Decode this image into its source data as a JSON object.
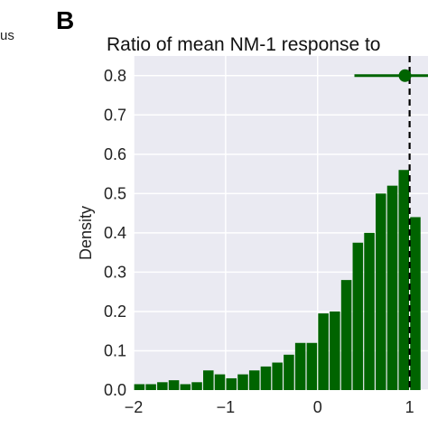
{
  "panel_letter": "B",
  "left_panel_fragment": "us",
  "colors": {
    "plot_background": "#eaeaf2",
    "grid": "#ffffff",
    "bar": "#006400",
    "marker": "#006400",
    "reference_line": "#000000"
  },
  "chart_data": {
    "type": "bar",
    "title": "Ratio of mean NM-1 response to",
    "xlabel": "",
    "ylabel": "Density",
    "xlim": [
      -2.0,
      1.2
    ],
    "ylim": [
      0.0,
      0.85
    ],
    "x_ticks": [
      -2,
      -1,
      0,
      1
    ],
    "x_tick_labels": [
      "−2",
      "−1",
      "0",
      "1"
    ],
    "y_ticks": [
      0.0,
      0.1,
      0.2,
      0.3,
      0.4,
      0.5,
      0.6,
      0.7,
      0.8
    ],
    "y_tick_labels": [
      "0.0",
      "0.1",
      "0.2",
      "0.3",
      "0.4",
      "0.5",
      "0.6",
      "0.7",
      "0.8"
    ],
    "grid": true,
    "bin_width": 0.125,
    "bin_starts": [
      -2.0,
      -1.875,
      -1.75,
      -1.625,
      -1.5,
      -1.375,
      -1.25,
      -1.125,
      -1.0,
      -0.875,
      -0.75,
      -0.625,
      -0.5,
      -0.375,
      -0.25,
      -0.125,
      0.0,
      0.125,
      0.25,
      0.375,
      0.5,
      0.625,
      0.75,
      0.875,
      1.0
    ],
    "values": [
      0.015,
      0.015,
      0.02,
      0.025,
      0.015,
      0.02,
      0.05,
      0.04,
      0.03,
      0.04,
      0.05,
      0.06,
      0.07,
      0.09,
      0.12,
      0.12,
      0.195,
      0.2,
      0.28,
      0.375,
      0.4,
      0.5,
      0.52,
      0.56,
      0.44
    ],
    "reference_line_x": 1.0,
    "point_estimate": {
      "x": 0.95,
      "y": 0.8,
      "ci": [
        0.4,
        1.2
      ]
    }
  }
}
